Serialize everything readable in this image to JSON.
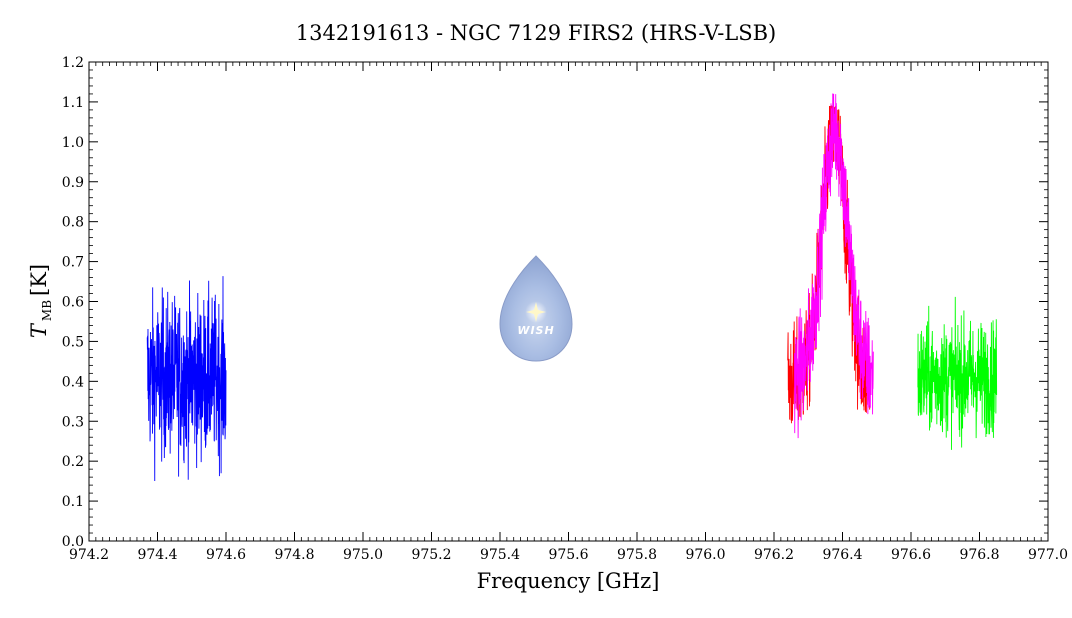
{
  "chart_data": {
    "type": "line",
    "title": "1342191613 - NGC 7129 FIRS2 (HRS-V-LSB)",
    "xlabel": "Frequency [GHz]",
    "ylabel_main": "T",
    "ylabel_sub": "MB",
    "ylabel_unit": "[K]",
    "xlim": [
      974.2,
      977.0
    ],
    "ylim": [
      0.0,
      1.2
    ],
    "xticks": [
      "974.2",
      "974.4",
      "974.6",
      "974.8",
      "975.0",
      "975.2",
      "975.4",
      "975.6",
      "975.8",
      "976.0",
      "976.2",
      "976.4",
      "976.6",
      "976.8",
      "977.0"
    ],
    "yticks": [
      "0.0",
      "0.1",
      "0.2",
      "0.3",
      "0.4",
      "0.5",
      "0.6",
      "0.7",
      "0.8",
      "0.9",
      "1.0",
      "1.1",
      "1.2"
    ],
    "grid": false,
    "series": [
      {
        "color": "#0000ff",
        "kind": "noise",
        "x_range": [
          974.37,
          974.6
        ],
        "baseline": 0.41,
        "noise": 0.1,
        "min": 0.1,
        "max": 0.74
      },
      {
        "color": "#ff0000",
        "kind": "line",
        "x_range": [
          976.24,
          976.48
        ],
        "baseline": 0.4,
        "peak_center": 976.375,
        "peak_height": 0.62,
        "peak_width": 0.035,
        "noise": 0.07,
        "min": 0.19,
        "max": 1.09
      },
      {
        "color": "#ff00ff",
        "kind": "line",
        "x_range": [
          976.26,
          976.49
        ],
        "baseline": 0.41,
        "peak_center": 976.378,
        "peak_height": 0.62,
        "peak_width": 0.037,
        "noise": 0.07,
        "min": 0.24,
        "max": 1.12
      },
      {
        "color": "#00ff00",
        "kind": "noise",
        "x_range": [
          976.62,
          976.85
        ],
        "baseline": 0.41,
        "noise": 0.07,
        "min": 0.2,
        "max": 0.62
      }
    ]
  },
  "logo": {
    "text": "WISH",
    "icon": "water-drop-star-icon"
  }
}
